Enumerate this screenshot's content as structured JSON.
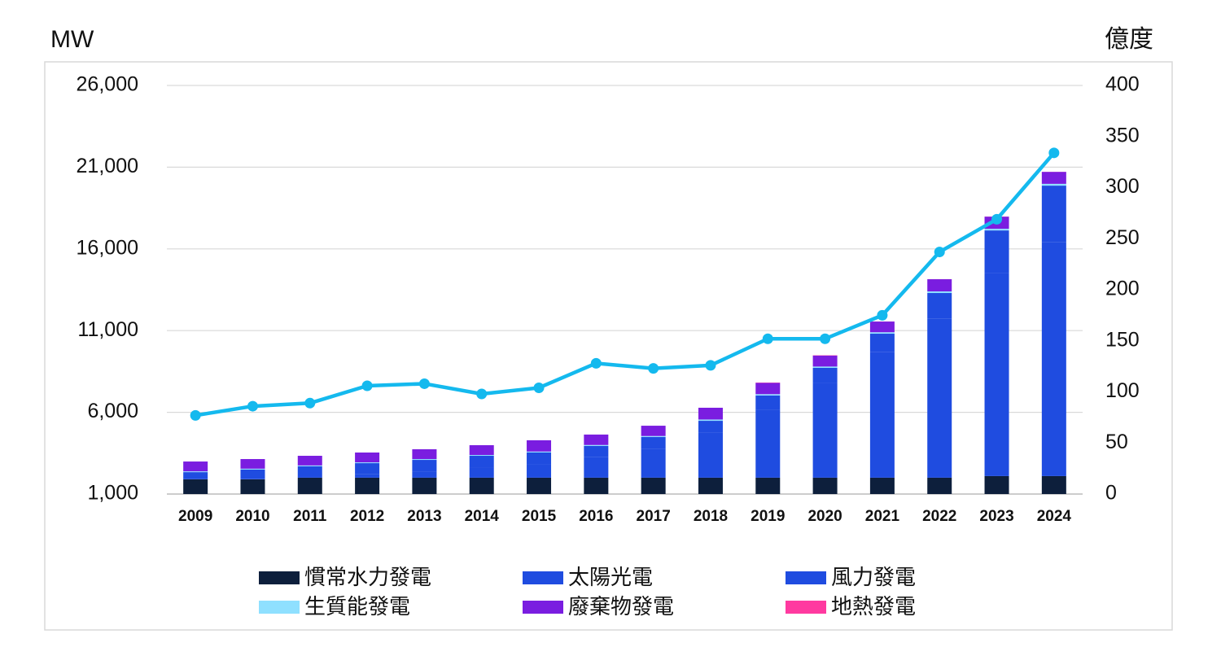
{
  "chart_data": {
    "type": "bar",
    "stacked": true,
    "y_label": "MW",
    "y2_label": "億度",
    "categories": [
      "2009",
      "2010",
      "2011",
      "2012",
      "2013",
      "2014",
      "2015",
      "2016",
      "2017",
      "2018",
      "2019",
      "2020",
      "2021",
      "2022",
      "2023",
      "2024"
    ],
    "ylim": [
      1000,
      26000
    ],
    "yticks": [
      {
        "value": 1000,
        "label": "1,000"
      },
      {
        "value": 6000,
        "label": "6,000"
      },
      {
        "value": 11000,
        "label": "11,000"
      },
      {
        "value": 16000,
        "label": "16,000"
      },
      {
        "value": 21000,
        "label": "21,000"
      },
      {
        "value": 26000,
        "label": "26,000"
      }
    ],
    "y2lim": [
      0,
      400
    ],
    "y2ticks": [
      0,
      50,
      100,
      150,
      200,
      250,
      300,
      350,
      400
    ],
    "grid": true,
    "series": [
      {
        "name": "慣常水力發電",
        "type": "bar",
        "color": "#0d1f3c",
        "values": [
          1900,
          1900,
          2000,
          2000,
          2000,
          2000,
          2000,
          2000,
          2000,
          2000,
          2000,
          2000,
          2000,
          2000,
          2100,
          2100
        ]
      },
      {
        "name": "太陽光電",
        "type": "bar",
        "color": "#1f4ce0",
        "values": [
          10,
          30,
          120,
          230,
          390,
          620,
          840,
          1250,
          1770,
          2740,
          4150,
          5820,
          7700,
          9720,
          12400,
          14300
        ]
      },
      {
        "name": "風力發電",
        "type": "bar",
        "color": "#1f4ce0",
        "values": [
          430,
          570,
          580,
          660,
          700,
          720,
          700,
          690,
          720,
          740,
          880,
          900,
          1110,
          1580,
          2630,
          3470
        ]
      },
      {
        "name": "生質能發電",
        "type": "bar",
        "color": "#8fe0ff",
        "values": [
          50,
          50,
          50,
          50,
          50,
          50,
          60,
          60,
          60,
          80,
          80,
          80,
          90,
          100,
          100,
          110
        ]
      },
      {
        "name": "廢棄物發電",
        "type": "bar",
        "color": "#7a1de0",
        "values": [
          600,
          590,
          590,
          600,
          600,
          600,
          690,
          640,
          630,
          720,
          690,
          670,
          655,
          745,
          743,
          733
        ]
      },
      {
        "name": "地熱發電",
        "type": "bar",
        "color": "#ff3aa0",
        "values": [
          0,
          0,
          0,
          0,
          0,
          0,
          0,
          0,
          0,
          0,
          20,
          20,
          5,
          5,
          7,
          7
        ]
      },
      {
        "type": "line",
        "axis": "y2",
        "color": "#14b9ee",
        "values": [
          77,
          86,
          89,
          106,
          108,
          98,
          104,
          128,
          123,
          126,
          152,
          152,
          175,
          237,
          269,
          334
        ]
      }
    ]
  }
}
